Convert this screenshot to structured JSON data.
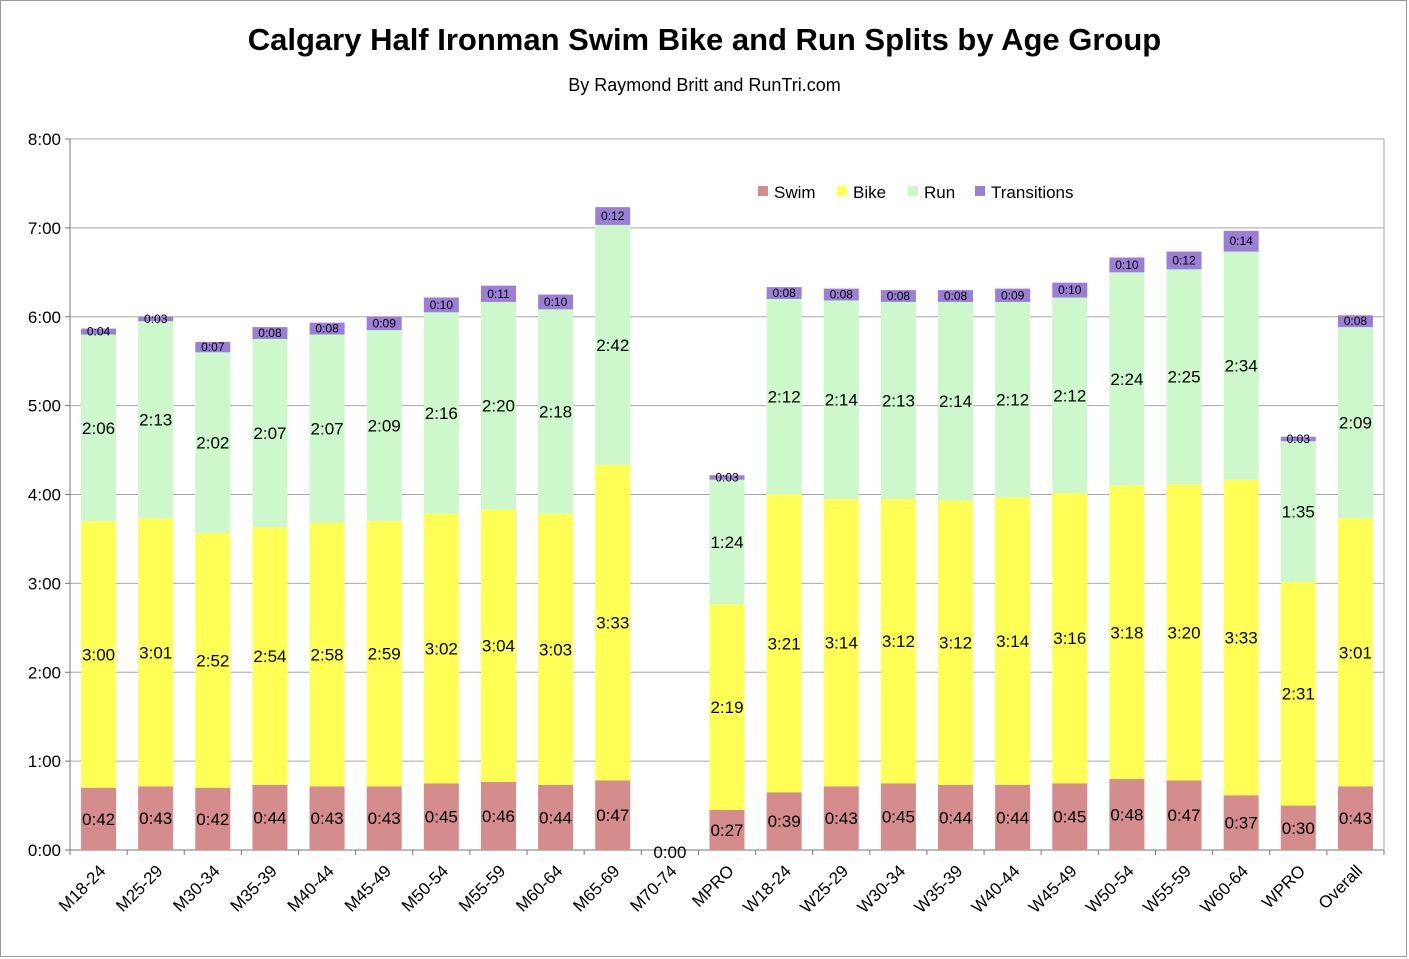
{
  "title": "Calgary Half Ironman Swim Bike and Run Splits by Age Group",
  "subtitle": "By Raymond Britt and RunTri.com",
  "chart_data": {
    "type": "bar",
    "stacked": true,
    "title": "Calgary Half Ironman Swim Bike and Run Splits by Age Group",
    "subtitle": "By Raymond Britt and RunTri.com",
    "xlabel": "",
    "ylabel": "",
    "ylim": [
      "0:00",
      "8:00"
    ],
    "ylim_minutes": [
      0,
      480
    ],
    "yticks": [
      "0:00",
      "1:00",
      "2:00",
      "3:00",
      "4:00",
      "5:00",
      "6:00",
      "7:00",
      "8:00"
    ],
    "grid": true,
    "legend_position": "top-right",
    "categories": [
      "M18-24",
      "M25-29",
      "M30-34",
      "M35-39",
      "M40-44",
      "M45-49",
      "M50-54",
      "M55-59",
      "M60-64",
      "M65-69",
      "M70-74",
      "MPRO",
      "W18-24",
      "W25-29",
      "W30-34",
      "W35-39",
      "W40-44",
      "W45-49",
      "W50-54",
      "W55-59",
      "W60-64",
      "WPRO",
      "Overall"
    ],
    "series": [
      {
        "name": "Swim",
        "color": "#d48c8c",
        "labels": [
          "0:42",
          "0:43",
          "0:42",
          "0:44",
          "0:43",
          "0:43",
          "0:45",
          "0:46",
          "0:44",
          "0:47",
          "0:00",
          "0:27",
          "0:39",
          "0:43",
          "0:45",
          "0:44",
          "0:44",
          "0:45",
          "0:48",
          "0:47",
          "0:37",
          "0:30",
          "0:43"
        ],
        "minutes": [
          42,
          43,
          42,
          44,
          43,
          43,
          45,
          46,
          44,
          47,
          0,
          27,
          39,
          43,
          45,
          44,
          44,
          45,
          48,
          47,
          37,
          30,
          43
        ]
      },
      {
        "name": "Bike",
        "color": "#ffff55",
        "labels": [
          "3:00",
          "3:01",
          "2:52",
          "2:54",
          "2:58",
          "2:59",
          "3:02",
          "3:04",
          "3:03",
          "3:33",
          "0:00",
          "2:19",
          "3:21",
          "3:14",
          "3:12",
          "3:12",
          "3:14",
          "3:16",
          "3:18",
          "3:20",
          "3:33",
          "2:31",
          "3:01"
        ],
        "minutes": [
          180,
          181,
          172,
          174,
          178,
          179,
          182,
          184,
          183,
          213,
          0,
          139,
          201,
          194,
          192,
          192,
          194,
          196,
          198,
          200,
          213,
          151,
          181
        ]
      },
      {
        "name": "Run",
        "color": "#ccf8cc",
        "labels": [
          "2:06",
          "2:13",
          "2:02",
          "2:07",
          "2:07",
          "2:09",
          "2:16",
          "2:20",
          "2:18",
          "2:42",
          "0:00",
          "1:24",
          "2:12",
          "2:14",
          "2:13",
          "2:14",
          "2:12",
          "2:12",
          "2:24",
          "2:25",
          "2:34",
          "1:35",
          "2:09"
        ],
        "minutes": [
          126,
          133,
          122,
          127,
          127,
          129,
          136,
          140,
          138,
          162,
          0,
          84,
          132,
          134,
          133,
          134,
          132,
          132,
          144,
          145,
          154,
          95,
          129
        ]
      },
      {
        "name": "Transitions",
        "color": "#9b7fd6",
        "labels": [
          "0:04",
          "0:03",
          "0:07",
          "0:08",
          "0:08",
          "0:09",
          "0:10",
          "0:11",
          "0:10",
          "0:12",
          "0:00",
          "0:03",
          "0:08",
          "0:08",
          "0:08",
          "0:08",
          "0:09",
          "0:10",
          "0:10",
          "0:12",
          "0:14",
          "0:03",
          "0:08"
        ],
        "minutes": [
          4,
          3,
          7,
          8,
          8,
          9,
          10,
          11,
          10,
          12,
          0,
          3,
          8,
          8,
          8,
          8,
          9,
          10,
          10,
          12,
          14,
          3,
          8
        ]
      }
    ]
  }
}
